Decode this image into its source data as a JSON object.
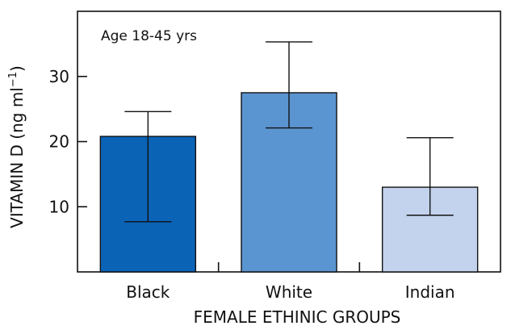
{
  "chart_data": {
    "type": "bar",
    "annotation": "Age 18-45 yrs",
    "xlabel": "FEMALE ETHINIC GROUPS",
    "ylabel": "VITAMIN D (ng ml",
    "ylabel_superscript": "−1",
    "ylabel_suffix": ")",
    "categories": [
      "Black",
      "White",
      "Indian"
    ],
    "values": [
      20.8,
      27.5,
      13.0
    ],
    "error_low": [
      7.7,
      22.1,
      8.7
    ],
    "error_high": [
      24.6,
      35.3,
      20.6
    ],
    "bar_colors": [
      "#0b63b6",
      "#5b95d1",
      "#c3d3ee"
    ],
    "ylim": [
      0,
      40
    ],
    "yticks": [
      10,
      20,
      30
    ],
    "ytick_labels": [
      "10",
      "20",
      "30"
    ],
    "grid": false,
    "legend": "none"
  }
}
